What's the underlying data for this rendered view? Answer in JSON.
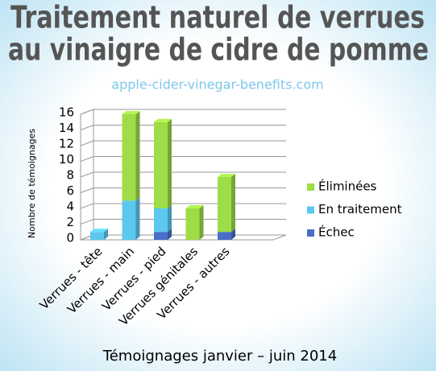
{
  "chart_data": {
    "type": "bar3d",
    "title": [
      "Traitement naturel de verrues",
      "au vinaigre de cidre de pomme"
    ],
    "subtitle": "apple-cider-vinegar-benefits.com",
    "y_label": "Nombre de témoignages",
    "x_label": "Témoignages janvier – juin 2014",
    "categories": [
      "Verrues - tête",
      "Verrues - main",
      "Verrues - pied",
      "Verrues génitales",
      "Verrues - autres"
    ],
    "series": [
      {
        "name": "Échec",
        "color": "#4a6fc8",
        "values": [
          0,
          0,
          1,
          0,
          1
        ]
      },
      {
        "name": "En traitement",
        "color": "#5cc8ee",
        "values": [
          1,
          5,
          3,
          0,
          0
        ]
      },
      {
        "name": "Éliminées",
        "color": "#9edc48",
        "values": [
          0,
          11,
          11,
          4,
          7
        ]
      }
    ],
    "stacked": true,
    "ylim": [
      0,
      16
    ],
    "yticks": [
      0,
      2,
      4,
      6,
      8,
      10,
      12,
      14,
      16
    ],
    "grid": true,
    "legend": "right"
  }
}
